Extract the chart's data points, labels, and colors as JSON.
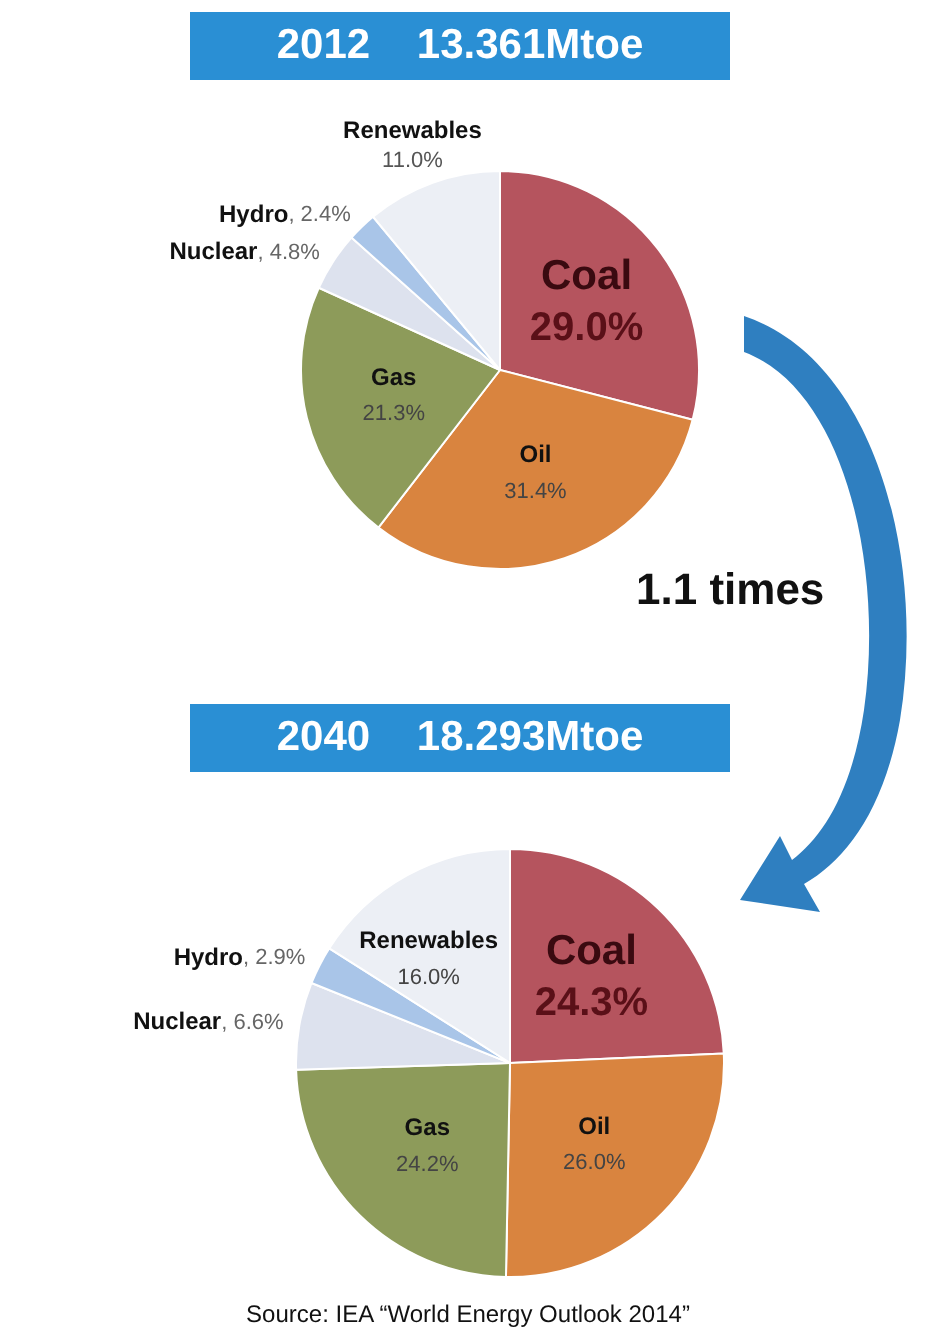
{
  "chart_data": [
    {
      "type": "pie",
      "title": "2012    13.361Mtoe",
      "categories": [
        "Coal",
        "Oil",
        "Gas",
        "Nuclear",
        "Hydro",
        "Renewables"
      ],
      "values": [
        29.0,
        31.4,
        21.3,
        4.8,
        2.4,
        11.0
      ],
      "value_labels": [
        "29.0%",
        "31.4%",
        "21.3%",
        ", 4.8%",
        ", 2.4%",
        "11.0%"
      ],
      "colors": [
        "#b5545e",
        "#d9843f",
        "#8d9b5a",
        "#dde2ee",
        "#a9c5e8",
        "#eceff5"
      ],
      "annotations": [
        "1.1 times"
      ]
    },
    {
      "type": "pie",
      "title": "2040    18.293Mtoe",
      "categories": [
        "Coal",
        "Oil",
        "Gas",
        "Nuclear",
        "Hydro",
        "Renewables"
      ],
      "values": [
        24.3,
        26.0,
        24.2,
        6.6,
        2.9,
        16.0
      ],
      "value_labels": [
        "24.3%",
        "26.0%",
        "24.2%",
        ", 6.6%",
        ", 2.9%",
        "16.0%"
      ],
      "colors": [
        "#b5545e",
        "#d9843f",
        "#8d9b5a",
        "#dde2ee",
        "#a9c5e8",
        "#eceff5"
      ],
      "annotations": [
        "Source: IEA “World Energy Outlook 2014”"
      ]
    }
  ]
}
